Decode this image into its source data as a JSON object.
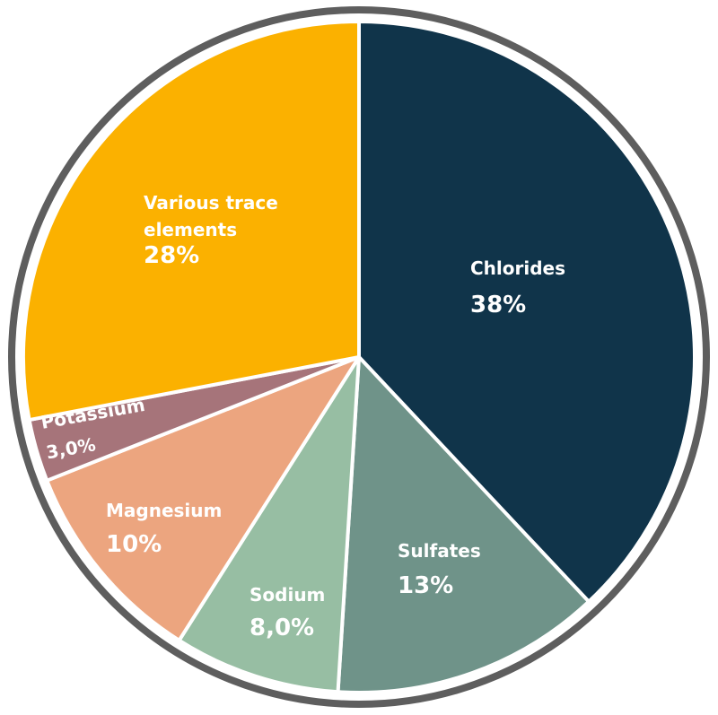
{
  "chart_data": {
    "type": "pie",
    "start": "top",
    "direction": "clockwise",
    "slices": [
      {
        "label": [
          "Chlorides"
        ],
        "value": 38,
        "value_label": "38%",
        "color": "#10344a"
      },
      {
        "label": [
          "Sulfates"
        ],
        "value": 13,
        "value_label": "13%",
        "color": "#6f9389"
      },
      {
        "label": [
          "Sodium"
        ],
        "value": 8.0,
        "value_label": "8,0%",
        "color": "#97bea3"
      },
      {
        "label": [
          "Magnesium"
        ],
        "value": 10,
        "value_label": "10%",
        "color": "#eca57f"
      },
      {
        "label": [
          "Potassium"
        ],
        "value": 3.0,
        "value_label": "3,0%",
        "color": "#a6747a"
      },
      {
        "label": [
          "Various trace",
          "elements"
        ],
        "value": 28,
        "value_label": "28%",
        "color": "#fbb100"
      }
    ],
    "ring_color": "#5e5e5e"
  }
}
